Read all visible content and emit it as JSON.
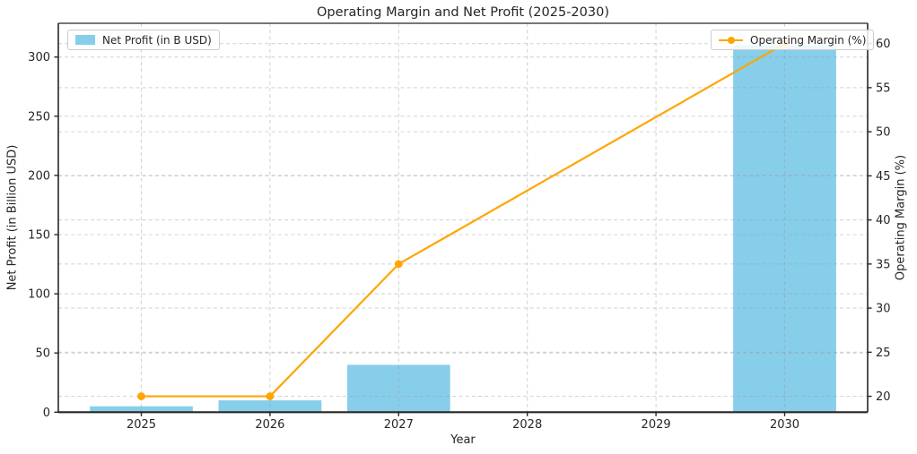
{
  "title": "Operating Margin and Net Profit (2025-2030)",
  "axes": {
    "x": {
      "label": "Year",
      "ticks": [
        "2025",
        "2026",
        "2027",
        "2028",
        "2029",
        "2030"
      ]
    },
    "y_left": {
      "label": "Net Profit (in Billion USD)",
      "ticks": [
        0,
        50,
        100,
        150,
        200,
        250,
        300
      ]
    },
    "y_right": {
      "label": "Operating Margin (%)",
      "ticks": [
        20,
        25,
        30,
        35,
        40,
        45,
        50,
        55,
        60
      ]
    }
  },
  "legend": {
    "left": {
      "label": "Net Profit (in B USD)",
      "swatch_color": "#87CEEB"
    },
    "right": {
      "label": "Operating Margin (%)",
      "line_color": "#FFA500"
    }
  },
  "colors": {
    "bar": "#87CEEB",
    "line": "#FFA500",
    "grid": "#9a9a9a",
    "spine": "#262626",
    "text": "#262626"
  },
  "chart_data": {
    "type": "combo",
    "title": "Operating Margin and Net Profit (2025-2030)",
    "xlabel": "Year",
    "ylabel_left": "Net Profit (in Billion USD)",
    "ylabel_right": "Operating Margin (%)",
    "categories": [
      2025,
      2026,
      2027,
      2028,
      2029,
      2030
    ],
    "series": [
      {
        "name": "Net Profit (in B USD)",
        "type": "bar",
        "y_axis": "left",
        "color": "#87CEEB",
        "values": [
          5,
          10,
          40,
          0,
          0,
          310
        ]
      },
      {
        "name": "Operating Margin (%)",
        "type": "line",
        "y_axis": "right",
        "color": "#FFA500",
        "marker": "circle",
        "x": [
          2025,
          2026,
          2027,
          2030
        ],
        "values": [
          20,
          20,
          35,
          60
        ]
      }
    ],
    "ylim_left": [
      0,
      328.5
    ],
    "ylim_right": [
      18.2,
      62.3
    ],
    "grid": true,
    "grid_style": "dashed",
    "legend_positions": [
      "upper left",
      "upper right"
    ]
  }
}
